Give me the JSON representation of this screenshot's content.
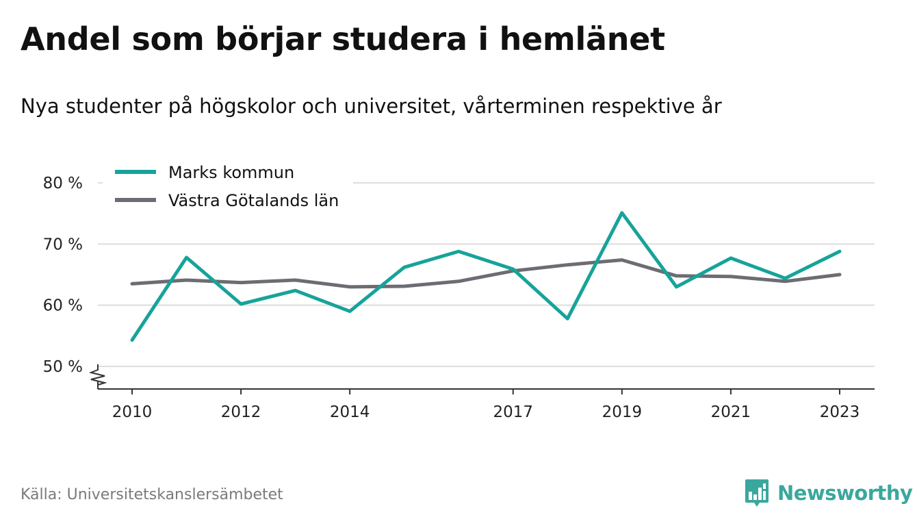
{
  "header": {
    "title": "Andel som börjar studera i hemlänet",
    "subtitle": "Nya studenter på högskolor och universitet, vårterminen respektive år"
  },
  "footer": {
    "source": "Källa: Universitetskanslersämbetet",
    "brand": "Newsworthy",
    "brand_icon": "bar-chart-speech-bubble-icon"
  },
  "colors": {
    "marks": "#16a39a",
    "vastra_gotaland": "#6d6c72",
    "grid": "#dddddd",
    "brand": "#3aa79d"
  },
  "chart_data": {
    "type": "line",
    "x": [
      2010,
      2011,
      2012,
      2013,
      2014,
      2015,
      2016,
      2017,
      2018,
      2019,
      2020,
      2021,
      2022,
      2023
    ],
    "x_tick_labels": [
      "2010",
      "2012",
      "2014",
      "2017",
      "2019",
      "2021",
      "2023"
    ],
    "x_tick_values": [
      2010,
      2012,
      2014,
      2017,
      2019,
      2021,
      2023
    ],
    "y_tick_labels": [
      "50 %",
      "60 %",
      "70 %",
      "80 %"
    ],
    "y_tick_values": [
      50,
      60,
      70,
      80
    ],
    "ylim": [
      50,
      80
    ],
    "y_axis_break": true,
    "grid": true,
    "legend_position": "top-left",
    "series": [
      {
        "name": "Marks kommun",
        "color": "#16a39a",
        "values": [
          54.3,
          67.8,
          60.2,
          62.4,
          59.0,
          66.2,
          68.8,
          65.9,
          57.8,
          75.1,
          63.0,
          67.7,
          64.4,
          68.8
        ]
      },
      {
        "name": "Västra Götalands län",
        "color": "#6d6c72",
        "values": [
          63.5,
          64.1,
          63.7,
          64.1,
          63.0,
          63.1,
          63.9,
          65.6,
          66.6,
          67.4,
          64.8,
          64.7,
          63.9,
          65.0
        ]
      }
    ]
  }
}
